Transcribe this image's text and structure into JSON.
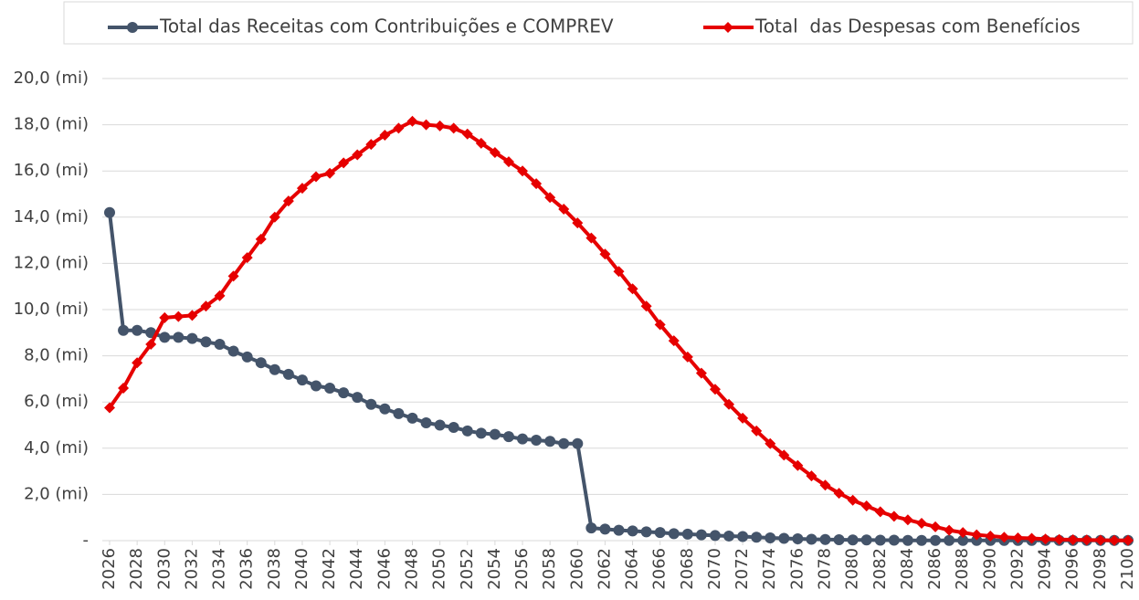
{
  "chart_data": {
    "type": "line",
    "x": [
      2026,
      2027,
      2028,
      2029,
      2030,
      2031,
      2032,
      2033,
      2034,
      2035,
      2036,
      2037,
      2038,
      2039,
      2040,
      2041,
      2042,
      2043,
      2044,
      2045,
      2046,
      2047,
      2048,
      2049,
      2050,
      2051,
      2052,
      2053,
      2054,
      2055,
      2056,
      2057,
      2058,
      2059,
      2060,
      2061,
      2062,
      2063,
      2064,
      2065,
      2066,
      2067,
      2068,
      2069,
      2070,
      2071,
      2072,
      2073,
      2074,
      2075,
      2076,
      2077,
      2078,
      2079,
      2080,
      2081,
      2082,
      2083,
      2084,
      2085,
      2086,
      2087,
      2088,
      2089,
      2090,
      2091,
      2092,
      2093,
      2094,
      2095,
      2096,
      2097,
      2098,
      2099,
      2100
    ],
    "series": [
      {
        "name": "Total das Receitas com Contribuições e COMPREV",
        "color": "#44546a",
        "marker": "circle",
        "values": [
          14.2,
          9.1,
          9.1,
          9.0,
          8.8,
          8.8,
          8.75,
          8.6,
          8.5,
          8.2,
          7.95,
          7.7,
          7.4,
          7.2,
          6.95,
          6.7,
          6.6,
          6.4,
          6.2,
          5.9,
          5.7,
          5.5,
          5.3,
          5.1,
          5.0,
          4.9,
          4.75,
          4.65,
          4.6,
          4.5,
          4.4,
          4.35,
          4.3,
          4.2,
          4.2,
          0.55,
          0.5,
          0.45,
          0.42,
          0.38,
          0.35,
          0.3,
          0.28,
          0.25,
          0.22,
          0.2,
          0.18,
          0.15,
          0.12,
          0.1,
          0.08,
          0.06,
          0.05,
          0.04,
          0.03,
          0.03,
          0.02,
          0.02,
          0.01,
          0.01,
          0.01,
          0.01,
          0.01,
          0.01,
          0.01,
          0.01,
          0.01,
          0.01,
          0.01,
          0.01,
          0.01,
          0.01,
          0.01,
          0.01,
          0.01
        ]
      },
      {
        "name": "Total  das Despesas com Benefícios",
        "color": "#e60000",
        "marker": "diamond",
        "values": [
          5.75,
          6.6,
          7.7,
          8.5,
          9.65,
          9.7,
          9.75,
          10.15,
          10.6,
          11.45,
          12.25,
          13.05,
          14.0,
          14.7,
          15.25,
          15.75,
          15.9,
          16.35,
          16.7,
          17.15,
          17.55,
          17.85,
          18.15,
          18.0,
          17.95,
          17.85,
          17.6,
          17.2,
          16.8,
          16.4,
          16.0,
          15.45,
          14.85,
          14.35,
          13.75,
          13.1,
          12.4,
          11.65,
          10.9,
          10.15,
          9.35,
          8.65,
          7.95,
          7.25,
          6.55,
          5.9,
          5.3,
          4.75,
          4.2,
          3.7,
          3.25,
          2.8,
          2.4,
          2.05,
          1.75,
          1.5,
          1.25,
          1.05,
          0.9,
          0.75,
          0.6,
          0.45,
          0.35,
          0.25,
          0.2,
          0.15,
          0.12,
          0.1,
          0.07,
          0.05,
          0.04,
          0.03,
          0.02,
          0.01,
          0.01
        ]
      }
    ],
    "xlim": [
      2026,
      2100
    ],
    "xticks": [
      2026,
      2028,
      2030,
      2032,
      2034,
      2036,
      2038,
      2040,
      2042,
      2044,
      2046,
      2048,
      2050,
      2052,
      2054,
      2056,
      2058,
      2060,
      2062,
      2064,
      2066,
      2068,
      2070,
      2072,
      2074,
      2076,
      2078,
      2080,
      2082,
      2084,
      2086,
      2088,
      2090,
      2092,
      2094,
      2096,
      2098,
      2100
    ],
    "ylim": [
      0,
      20
    ],
    "yticks": [
      {
        "value": 0,
        "label": "-"
      },
      {
        "value": 2,
        "label": "2,0 (mi)"
      },
      {
        "value": 4,
        "label": "4,0 (mi)"
      },
      {
        "value": 6,
        "label": "6,0 (mi)"
      },
      {
        "value": 8,
        "label": "8,0 (mi)"
      },
      {
        "value": 10,
        "label": "10,0 (mi)"
      },
      {
        "value": 12,
        "label": "12,0 (mi)"
      },
      {
        "value": 14,
        "label": "14,0 (mi)"
      },
      {
        "value": 16,
        "label": "16,0 (mi)"
      },
      {
        "value": 18,
        "label": "18,0 (mi)"
      },
      {
        "value": 20,
        "label": "20,0 (mi)"
      }
    ],
    "grid": true,
    "legend": "top"
  }
}
